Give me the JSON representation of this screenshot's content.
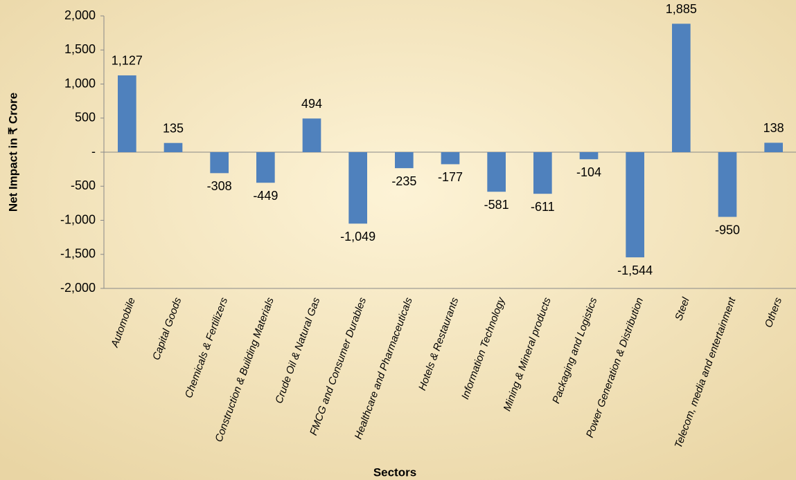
{
  "chart_data": {
    "type": "bar",
    "x_label": "Sectors",
    "y_label": "Net Impact in ₹ Crore",
    "categories": [
      "Automobile",
      "Capital Goods",
      "Chemicals & Fertilizers",
      "Construction & Building Materials",
      "Crude Oil & Natural Gas",
      "FMCG and Consumer Durables",
      "Healthcare and Pharmaceuticals",
      "Hotels & Restaurants",
      "Information Technology",
      "Mining & Mineral products",
      "Packaging and Logistics",
      "Power Generation & Distribution",
      "Steel",
      "Telecom, media and entertainment",
      "Others"
    ],
    "values": [
      1127,
      135,
      -308,
      -449,
      494,
      -1049,
      -235,
      -177,
      -581,
      -611,
      -104,
      -1544,
      1885,
      -950,
      138
    ],
    "value_labels": [
      "1,127",
      "135",
      "-308",
      "-449",
      "494",
      "-1,049",
      "-235",
      "-177",
      "-581",
      "-611",
      "-104",
      "-1,544",
      "1,885",
      "-950",
      "138"
    ],
    "color": "#4f81bd",
    "ylim": [
      -2000,
      2000
    ],
    "yticks": [
      {
        "value": 2000,
        "label": "2,000"
      },
      {
        "value": 1500,
        "label": "1,500"
      },
      {
        "value": 1000,
        "label": "1,000"
      },
      500,
      {
        "value": 0,
        "label": "-"
      },
      -500,
      {
        "value": -1000,
        "label": "-1,000"
      },
      {
        "value": -1500,
        "label": "-1,500"
      },
      {
        "value": -2000,
        "label": "-2,000"
      }
    ],
    "grid": false
  }
}
